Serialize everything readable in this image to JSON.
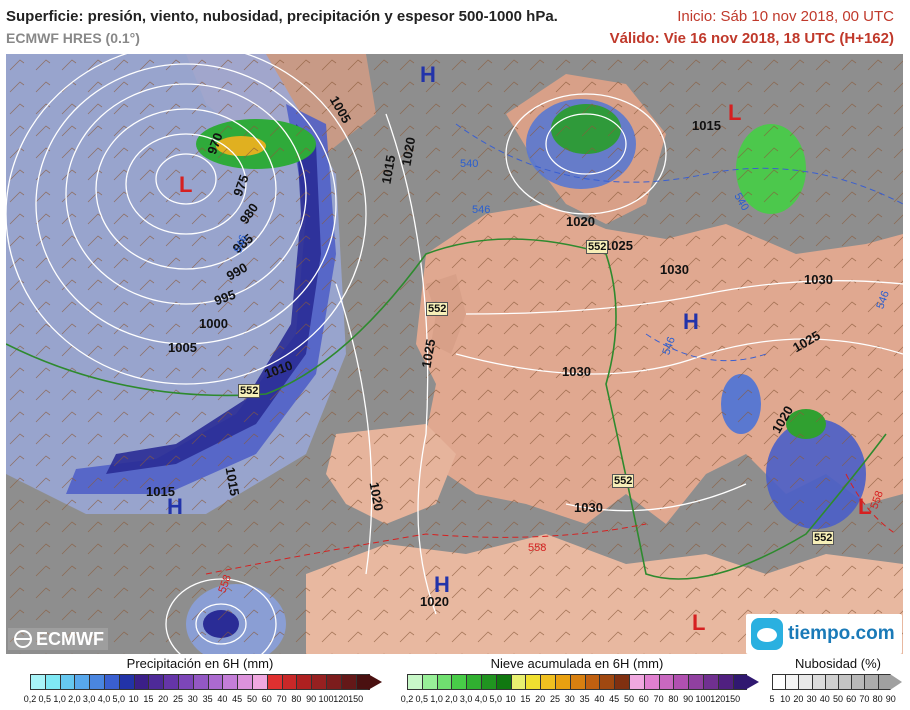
{
  "header": {
    "title": "Superficie: presión, viento, nubosidad, precipitación y espesor 500-1000 hPa.",
    "model": "ECMWF HRES (0.1°)",
    "init": "Inicio: Sáb 10 nov 2018, 00 UTC",
    "valid": "Válido: Vie 16 nov 2018, 18 UTC (H+162)"
  },
  "map": {
    "pressure_centers": [
      {
        "type": "L",
        "color": "#d62020"
      },
      {
        "type": "H",
        "color": "#2233aa"
      },
      {
        "type": "L",
        "color": "#d62020"
      },
      {
        "type": "H",
        "color": "#2233aa"
      },
      {
        "type": "H",
        "color": "#2233aa"
      },
      {
        "type": "L",
        "color": "#d62020"
      },
      {
        "type": "H",
        "color": "#2233aa"
      },
      {
        "type": "L",
        "color": "#d62020"
      }
    ],
    "isobar_labels": [
      "970",
      "975",
      "980",
      "985",
      "990",
      "995",
      "1000",
      "1005",
      "1005",
      "1010",
      "1015",
      "1015",
      "1020",
      "1015",
      "1020",
      "1025",
      "1030",
      "1030",
      "1030",
      "1020",
      "1025",
      "1025",
      "1020",
      "1015",
      "1020",
      "1030"
    ],
    "thickness_labels": [
      "552",
      "552",
      "552",
      "552",
      "552",
      "540",
      "546",
      "540",
      "546",
      "546",
      "558",
      "558",
      "558",
      "546"
    ],
    "logos": {
      "left": "ECMWF",
      "right": "tiempo.com"
    }
  },
  "legend": {
    "precip": {
      "title": "Precipitación en 6H (mm)",
      "ticks": [
        "0,2",
        "0,5",
        "1,0",
        "2,0",
        "3,0",
        "4,0",
        "5,0",
        "10",
        "15",
        "20",
        "25",
        "30",
        "35",
        "40",
        "45",
        "50",
        "60",
        "70",
        "80",
        "90",
        "100",
        "120",
        "150"
      ],
      "colors": [
        "#a8f4f8",
        "#7fe8f4",
        "#66c8f0",
        "#58a8ec",
        "#4a86e0",
        "#3a5fd0",
        "#2233a8",
        "#3b1f88",
        "#4e2a98",
        "#6535a8",
        "#7c46b8",
        "#9358c4",
        "#ab6ad0",
        "#c47ed8",
        "#dc92dc",
        "#f0a8e0",
        "#e03030",
        "#c82828",
        "#ae2020",
        "#962020",
        "#7c1c1c",
        "#641818",
        "#4a1010"
      ]
    },
    "snow": {
      "title": "Nieve acumulada en 6H (mm)",
      "ticks": [
        "0,2",
        "0,5",
        "1,0",
        "2,0",
        "3,0",
        "4,0",
        "5,0",
        "10",
        "15",
        "20",
        "25",
        "30",
        "35",
        "40",
        "45",
        "50",
        "60",
        "70",
        "80",
        "90",
        "100",
        "120",
        "150"
      ],
      "colors": [
        "#c8f8c8",
        "#98f098",
        "#70e070",
        "#48cc48",
        "#30b030",
        "#209420",
        "#107810",
        "#e8f070",
        "#f0e030",
        "#f0c020",
        "#e8a010",
        "#d88010",
        "#c06010",
        "#a04810",
        "#803010",
        "#f0a8e0",
        "#e080d0",
        "#c868c0",
        "#b050b0",
        "#9040a0",
        "#703090",
        "#502080",
        "#301870"
      ]
    },
    "cloud": {
      "title": "Nubosidad (%)",
      "ticks": [
        "5",
        "10",
        "20",
        "30",
        "40",
        "50",
        "60",
        "70",
        "80",
        "90"
      ],
      "colors": [
        "#ffffff",
        "#f4f4f4",
        "#e8e8e8",
        "#dcdcdc",
        "#d0d0d0",
        "#c4c4c4",
        "#b8b8b8",
        "#acacac",
        "#a0a0a0"
      ]
    }
  }
}
